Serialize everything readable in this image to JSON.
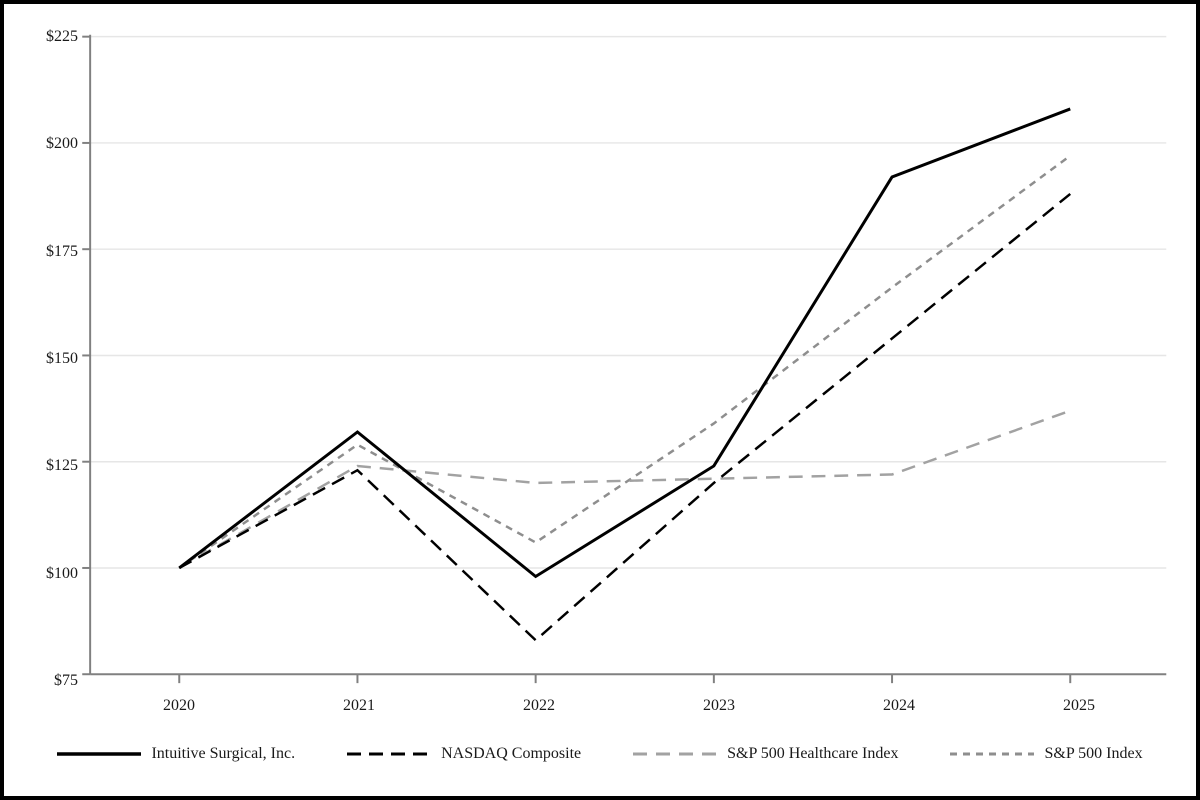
{
  "chart_data": {
    "type": "line",
    "x_labels": [
      "2020",
      "2021",
      "2022",
      "2023",
      "2024",
      "2025"
    ],
    "y_tick_labels": [
      "$75",
      "$100",
      "$125",
      "$150",
      "$175",
      "$200",
      "$225"
    ],
    "ylim": [
      75,
      225
    ],
    "y_step": 25,
    "xlabel": "",
    "ylabel": "",
    "title": "",
    "grid": "horizontal-on",
    "legend_position": "bottom-center",
    "series": [
      {
        "name": "Intuitive Surgical, Inc.",
        "values": [
          100,
          132,
          98,
          124,
          192,
          208
        ],
        "color": "#000000",
        "dash": "",
        "width": 3
      },
      {
        "name": "NASDAQ Composite",
        "values": [
          100,
          123,
          83,
          120,
          154,
          188
        ],
        "color": "#000000",
        "dash": "14,8",
        "width": 2.5
      },
      {
        "name": "S&P 500 Healthcare Index",
        "values": [
          100,
          124,
          120,
          121,
          122,
          137
        ],
        "color": "#a2a2a2",
        "dash": "14,9",
        "width": 2.5
      },
      {
        "name": "S&P 500 Index",
        "values": [
          100,
          129,
          106,
          134,
          166,
          197
        ],
        "color": "#8e8e8e",
        "dash": "7,6",
        "width": 2.5
      }
    ]
  },
  "colors": {
    "axis": "#808080",
    "gridline": "#e6e6e6",
    "frame_border": "#000000",
    "text": "#1a1a1a",
    "background": "#ffffff"
  }
}
